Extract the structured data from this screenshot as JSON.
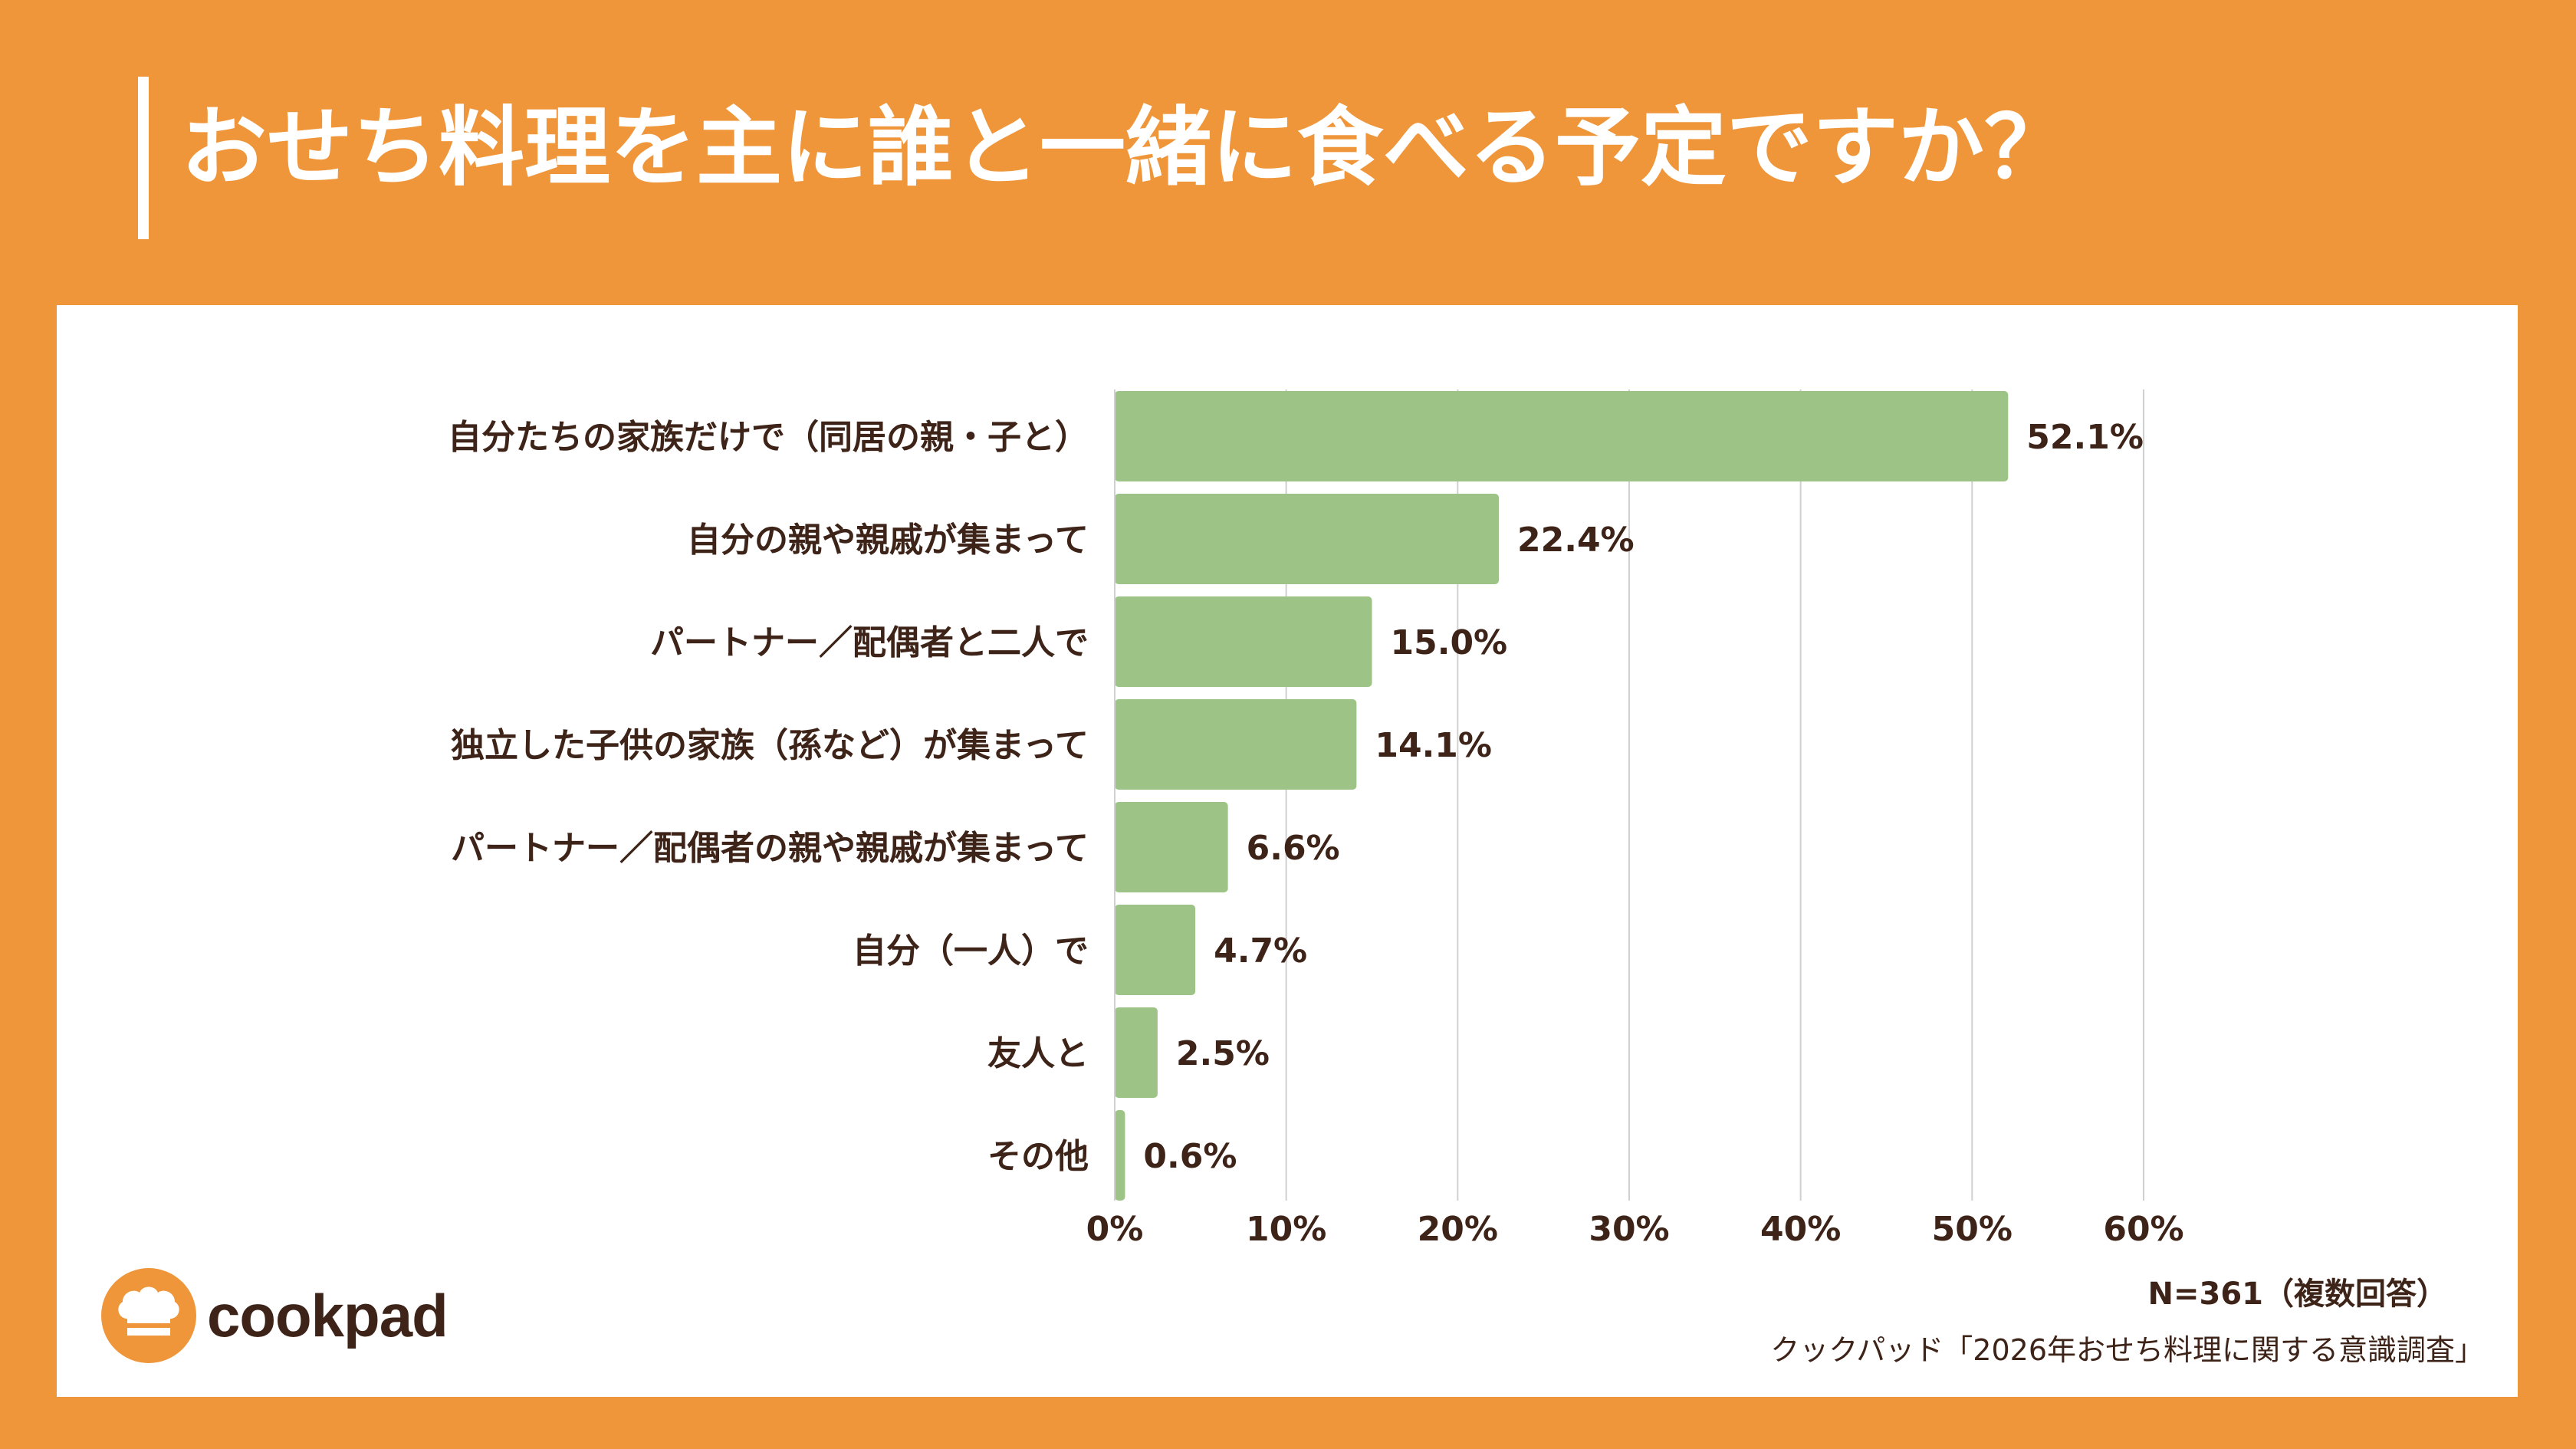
{
  "title": "おせち料理を主に誰と一緒に食べる予定ですか？",
  "note": "N=361（複数回答）",
  "source": "クックパッド「2026年おせち料理に関する意識調査」",
  "logo_text": "cookpad",
  "colors": {
    "background": "#F0963A",
    "bar": "#9DC386",
    "text": "#3E2418",
    "grid": "#D0D0D0"
  },
  "chart_data": {
    "type": "bar",
    "orientation": "horizontal",
    "categories": [
      "自分たちの家族だけで（同居の親・子と）",
      "自分の親や親戚が集まって",
      "パートナー／配偶者と二人で",
      "独立した子供の家族（孫など）が集まって",
      "パートナー／配偶者の親や親戚が集まって",
      "自分（一人）で",
      "友人と",
      "その他"
    ],
    "values": [
      52.1,
      22.4,
      15.0,
      14.1,
      6.6,
      4.7,
      2.5,
      0.6
    ],
    "value_labels": [
      "52.1%",
      "22.4%",
      "15.0%",
      "14.1%",
      "6.6%",
      "4.7%",
      "2.5%",
      "0.6%"
    ],
    "xlim": [
      0,
      60
    ],
    "x_ticks": [
      0,
      10,
      20,
      30,
      40,
      50,
      60
    ],
    "x_tick_labels": [
      "0%",
      "10%",
      "20%",
      "30%",
      "40%",
      "50%",
      "60%"
    ],
    "grid": true,
    "legend": "none"
  }
}
